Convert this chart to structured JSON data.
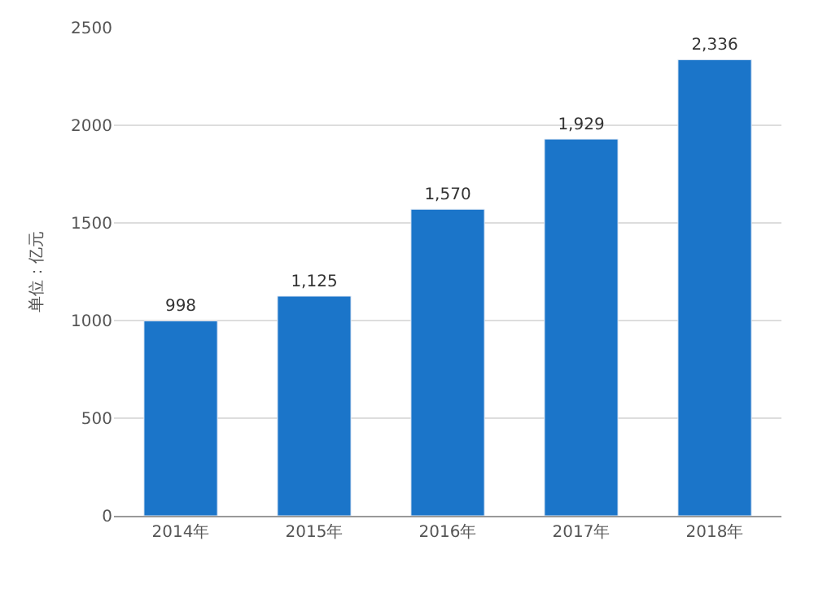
{
  "chart_data": {
    "type": "bar",
    "ylabel": "单位：亿元",
    "categories": [
      "2014年",
      "2015年",
      "2016年",
      "2017年",
      "2018年"
    ],
    "values": [
      998,
      1125,
      1570,
      1929,
      2336
    ],
    "value_labels": [
      "998",
      "1,125",
      "1,570",
      "1,929",
      "2,336"
    ],
    "color": "#1b75c9",
    "ylim": [
      0,
      2500
    ],
    "yticks": [
      0,
      500,
      1000,
      1500,
      2000,
      2500
    ],
    "grid": "y",
    "legend": false
  }
}
